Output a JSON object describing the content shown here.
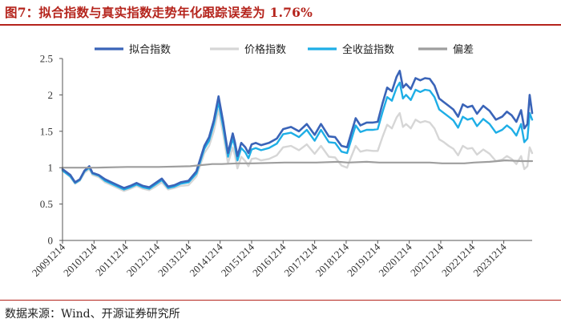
{
  "header": {
    "figure_title": "图7：拟合指数与真实指数走势年化跟踪误差为 1.76%"
  },
  "footer": {
    "source": "数据来源：Wind、开源证券研究所"
  },
  "colors": {
    "fitted": "#3a64b8",
    "price": "#d6d6d6",
    "total_return": "#1eaee6",
    "deviation": "#9e9e9e",
    "accent": "#b5241c"
  },
  "chart_data": {
    "type": "line",
    "title": "拟合指数与真实指数走势",
    "xlabel": "",
    "ylabel": "",
    "ylim": [
      0,
      2.5
    ],
    "yticks": [
      "0",
      "0.5",
      "1",
      "1.5",
      "2",
      "2.5"
    ],
    "x_tick_labels": [
      "20091214",
      "20101214",
      "20111214",
      "20121214",
      "20131214",
      "20141214",
      "20151214",
      "20161214",
      "20171214",
      "20181214",
      "20191214",
      "20201214",
      "20211214",
      "20221214",
      "20231214"
    ],
    "x_start_year": 2009.95,
    "x_end_year": 2024.85,
    "legend_position": "top",
    "series": [
      {
        "key": "fitted",
        "name": "拟合指数",
        "t": [
          2009.95,
          2010.2,
          2010.35,
          2010.5,
          2010.65,
          2010.8,
          2010.9,
          2011.1,
          2011.3,
          2011.5,
          2011.7,
          2011.9,
          2012.1,
          2012.3,
          2012.5,
          2012.7,
          2012.9,
          2013.1,
          2013.3,
          2013.5,
          2013.7,
          2013.95,
          2014.2,
          2014.45,
          2014.6,
          2014.75,
          2014.9,
          2015.05,
          2015.2,
          2015.35,
          2015.42,
          2015.5,
          2015.62,
          2015.75,
          2015.85,
          2015.95,
          2016.08,
          2016.25,
          2016.5,
          2016.75,
          2016.95,
          2017.2,
          2017.45,
          2017.7,
          2017.95,
          2018.15,
          2018.4,
          2018.6,
          2018.8,
          2018.98,
          2019.1,
          2019.25,
          2019.4,
          2019.6,
          2019.8,
          2019.95,
          2020.1,
          2020.25,
          2020.4,
          2020.55,
          2020.65,
          2020.75,
          2020.85,
          2021.0,
          2021.15,
          2021.3,
          2021.45,
          2021.6,
          2021.75,
          2021.9,
          2022.05,
          2022.2,
          2022.35,
          2022.5,
          2022.65,
          2022.8,
          2022.95,
          2023.1,
          2023.3,
          2023.5,
          2023.7,
          2023.9,
          2024.05,
          2024.2,
          2024.35,
          2024.5,
          2024.6,
          2024.7,
          2024.77,
          2024.85
        ],
        "values": [
          0.98,
          0.9,
          0.8,
          0.84,
          0.96,
          1.02,
          0.93,
          0.9,
          0.84,
          0.8,
          0.76,
          0.72,
          0.75,
          0.79,
          0.75,
          0.73,
          0.79,
          0.85,
          0.74,
          0.76,
          0.8,
          0.82,
          0.95,
          1.3,
          1.42,
          1.65,
          1.98,
          1.62,
          1.2,
          1.47,
          1.35,
          1.16,
          1.34,
          1.28,
          1.2,
          1.32,
          1.34,
          1.31,
          1.34,
          1.4,
          1.53,
          1.56,
          1.5,
          1.6,
          1.45,
          1.6,
          1.43,
          1.42,
          1.3,
          1.28,
          1.46,
          1.68,
          1.58,
          1.62,
          1.62,
          1.63,
          1.88,
          2.1,
          2.05,
          2.25,
          2.33,
          2.1,
          2.15,
          2.08,
          2.23,
          2.2,
          2.23,
          2.22,
          2.13,
          1.95,
          1.9,
          1.85,
          1.8,
          1.7,
          1.87,
          1.83,
          1.85,
          1.74,
          1.85,
          1.78,
          1.66,
          1.7,
          1.77,
          1.72,
          1.63,
          1.79,
          1.54,
          1.6,
          2.0,
          1.75
        ]
      },
      {
        "key": "price",
        "name": "价格指数",
        "t": [
          2009.95,
          2010.2,
          2010.35,
          2010.5,
          2010.65,
          2010.8,
          2010.9,
          2011.1,
          2011.3,
          2011.5,
          2011.7,
          2011.9,
          2012.1,
          2012.3,
          2012.5,
          2012.7,
          2012.9,
          2013.1,
          2013.3,
          2013.5,
          2013.7,
          2013.95,
          2014.2,
          2014.45,
          2014.6,
          2014.75,
          2014.9,
          2015.05,
          2015.2,
          2015.35,
          2015.42,
          2015.5,
          2015.62,
          2015.75,
          2015.85,
          2015.95,
          2016.08,
          2016.25,
          2016.5,
          2016.75,
          2016.95,
          2017.2,
          2017.45,
          2017.7,
          2017.95,
          2018.15,
          2018.4,
          2018.6,
          2018.8,
          2018.98,
          2019.1,
          2019.25,
          2019.4,
          2019.6,
          2019.8,
          2019.95,
          2020.1,
          2020.25,
          2020.4,
          2020.55,
          2020.65,
          2020.75,
          2020.85,
          2021.0,
          2021.15,
          2021.3,
          2021.45,
          2021.6,
          2021.75,
          2021.9,
          2022.05,
          2022.2,
          2022.35,
          2022.5,
          2022.65,
          2022.8,
          2022.95,
          2023.1,
          2023.3,
          2023.5,
          2023.7,
          2023.9,
          2024.05,
          2024.2,
          2024.35,
          2024.5,
          2024.6,
          2024.7,
          2024.77,
          2024.85
        ],
        "values": [
          0.96,
          0.87,
          0.78,
          0.82,
          0.93,
          0.98,
          0.9,
          0.87,
          0.8,
          0.76,
          0.72,
          0.68,
          0.71,
          0.75,
          0.71,
          0.69,
          0.74,
          0.8,
          0.7,
          0.72,
          0.75,
          0.76,
          0.88,
          1.2,
          1.3,
          1.5,
          1.8,
          1.45,
          1.06,
          1.28,
          1.17,
          0.99,
          1.15,
          1.09,
          1.02,
          1.12,
          1.13,
          1.1,
          1.12,
          1.17,
          1.28,
          1.3,
          1.24,
          1.32,
          1.19,
          1.3,
          1.15,
          1.14,
          1.03,
          1.0,
          1.14,
          1.3,
          1.22,
          1.24,
          1.23,
          1.23,
          1.42,
          1.59,
          1.54,
          1.69,
          1.75,
          1.56,
          1.6,
          1.54,
          1.66,
          1.62,
          1.64,
          1.62,
          1.54,
          1.39,
          1.35,
          1.3,
          1.26,
          1.17,
          1.3,
          1.26,
          1.27,
          1.18,
          1.25,
          1.19,
          1.09,
          1.11,
          1.16,
          1.12,
          1.05,
          1.16,
          0.98,
          1.02,
          1.28,
          1.2
        ]
      },
      {
        "key": "total_return",
        "name": "全收益指数",
        "t": [
          2009.95,
          2010.2,
          2010.35,
          2010.5,
          2010.65,
          2010.8,
          2010.9,
          2011.1,
          2011.3,
          2011.5,
          2011.7,
          2011.9,
          2012.1,
          2012.3,
          2012.5,
          2012.7,
          2012.9,
          2013.1,
          2013.3,
          2013.5,
          2013.7,
          2013.95,
          2014.2,
          2014.45,
          2014.6,
          2014.75,
          2014.9,
          2015.05,
          2015.2,
          2015.35,
          2015.42,
          2015.5,
          2015.62,
          2015.75,
          2015.85,
          2015.95,
          2016.08,
          2016.25,
          2016.5,
          2016.75,
          2016.95,
          2017.2,
          2017.45,
          2017.7,
          2017.95,
          2018.15,
          2018.4,
          2018.6,
          2018.8,
          2018.98,
          2019.1,
          2019.25,
          2019.4,
          2019.6,
          2019.8,
          2019.95,
          2020.1,
          2020.25,
          2020.4,
          2020.55,
          2020.65,
          2020.75,
          2020.85,
          2021.0,
          2021.15,
          2021.3,
          2021.45,
          2021.6,
          2021.75,
          2021.9,
          2022.05,
          2022.2,
          2022.35,
          2022.5,
          2022.65,
          2022.8,
          2022.95,
          2023.1,
          2023.3,
          2023.5,
          2023.7,
          2023.9,
          2024.05,
          2024.2,
          2024.35,
          2024.5,
          2024.6,
          2024.7,
          2024.77,
          2024.85
        ],
        "values": [
          0.96,
          0.88,
          0.79,
          0.83,
          0.95,
          1.0,
          0.92,
          0.89,
          0.82,
          0.78,
          0.74,
          0.7,
          0.73,
          0.77,
          0.73,
          0.71,
          0.77,
          0.83,
          0.72,
          0.74,
          0.78,
          0.8,
          0.92,
          1.26,
          1.37,
          1.6,
          1.9,
          1.55,
          1.15,
          1.4,
          1.29,
          1.1,
          1.27,
          1.21,
          1.13,
          1.25,
          1.27,
          1.24,
          1.27,
          1.33,
          1.46,
          1.48,
          1.42,
          1.52,
          1.37,
          1.52,
          1.35,
          1.34,
          1.22,
          1.2,
          1.37,
          1.58,
          1.49,
          1.52,
          1.52,
          1.53,
          1.76,
          1.97,
          1.92,
          2.1,
          2.17,
          1.95,
          2.0,
          1.93,
          2.07,
          2.04,
          2.07,
          2.06,
          1.97,
          1.8,
          1.75,
          1.7,
          1.65,
          1.55,
          1.7,
          1.66,
          1.68,
          1.57,
          1.67,
          1.6,
          1.48,
          1.52,
          1.58,
          1.53,
          1.44,
          1.6,
          1.35,
          1.4,
          1.75,
          1.66
        ]
      },
      {
        "key": "deviation",
        "name": "偏差",
        "t": [
          2009.95,
          2011.0,
          2012.0,
          2013.0,
          2014.0,
          2014.7,
          2015.0,
          2015.5,
          2016.0,
          2017.0,
          2018.0,
          2018.7,
          2019.0,
          2019.6,
          2020.0,
          2020.6,
          2021.0,
          2021.6,
          2022.0,
          2022.7,
          2023.0,
          2023.5,
          2024.0,
          2024.5,
          2024.85
        ],
        "values": [
          1.0,
          1.0,
          1.01,
          1.01,
          1.02,
          1.05,
          1.05,
          1.06,
          1.06,
          1.07,
          1.07,
          1.08,
          1.07,
          1.08,
          1.07,
          1.07,
          1.07,
          1.07,
          1.06,
          1.06,
          1.07,
          1.08,
          1.1,
          1.09,
          1.09
        ]
      }
    ]
  }
}
